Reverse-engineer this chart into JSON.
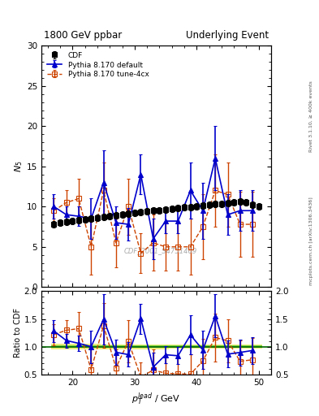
{
  "title_left": "1800 GeV ppbar",
  "title_right": "Underlying Event",
  "ylabel_main": "$N_5$",
  "ylabel_ratio": "Ratio to CDF",
  "xlabel": "$p_T^{lead}$ / GeV",
  "right_label_top": "Rivet 3.1.10, ≥ 400k events",
  "right_label_bot": "mcplots.cern.ch [arXiv:1306.3436]",
  "watermark": "CDF_2001_S4751469",
  "ylim_main": [
    0,
    30
  ],
  "ylim_ratio": [
    0.5,
    2.0
  ],
  "xlim": [
    15,
    52
  ],
  "xticks": [
    20,
    30,
    40,
    50
  ],
  "yticks_main": [
    0,
    5,
    10,
    15,
    20,
    25,
    30
  ],
  "yticks_ratio": [
    0.5,
    1.0,
    1.5,
    2.0
  ],
  "cdf_x": [
    17,
    18,
    19,
    20,
    21,
    22,
    23,
    24,
    25,
    26,
    27,
    28,
    29,
    30,
    31,
    32,
    33,
    34,
    35,
    36,
    37,
    38,
    39,
    40,
    41,
    42,
    43,
    44,
    45,
    46,
    47,
    48,
    49,
    50
  ],
  "cdf_y": [
    7.8,
    8.0,
    8.1,
    8.2,
    8.3,
    8.4,
    8.5,
    8.6,
    8.7,
    8.8,
    8.9,
    9.0,
    9.1,
    9.2,
    9.3,
    9.4,
    9.5,
    9.5,
    9.6,
    9.7,
    9.8,
    9.9,
    9.9,
    10.0,
    10.1,
    10.2,
    10.3,
    10.3,
    10.4,
    10.5,
    10.6,
    10.5,
    10.2,
    10.0
  ],
  "cdf_yerr": [
    0.4,
    0.4,
    0.4,
    0.4,
    0.4,
    0.4,
    0.4,
    0.4,
    0.4,
    0.4,
    0.4,
    0.4,
    0.4,
    0.4,
    0.4,
    0.4,
    0.4,
    0.4,
    0.4,
    0.4,
    0.4,
    0.4,
    0.4,
    0.4,
    0.4,
    0.4,
    0.4,
    0.4,
    0.4,
    0.4,
    0.4,
    0.4,
    0.4,
    0.4
  ],
  "py_def_x": [
    17,
    19,
    21,
    23,
    25,
    27,
    29,
    31,
    33,
    35,
    37,
    39,
    41,
    43,
    45,
    47,
    49
  ],
  "py_def_y": [
    10.0,
    9.0,
    8.8,
    8.5,
    13.0,
    8.0,
    7.8,
    14.0,
    6.0,
    8.2,
    8.2,
    12.0,
    9.5,
    16.0,
    9.0,
    9.5,
    9.5
  ],
  "py_def_yerr": [
    1.5,
    1.0,
    1.2,
    2.5,
    4.0,
    2.0,
    2.0,
    2.5,
    2.5,
    1.5,
    1.5,
    3.5,
    3.5,
    4.0,
    2.5,
    2.5,
    2.5
  ],
  "py_4cx_x": [
    17,
    19,
    21,
    23,
    25,
    27,
    29,
    31,
    33,
    35,
    37,
    39,
    41,
    43,
    45,
    47,
    49
  ],
  "py_4cx_y": [
    9.5,
    10.5,
    11.0,
    5.0,
    12.0,
    5.5,
    10.0,
    4.2,
    5.5,
    5.0,
    5.0,
    5.0,
    7.5,
    12.0,
    11.5,
    7.8,
    7.8
  ],
  "py_4cx_yerr": [
    1.5,
    1.5,
    2.5,
    3.5,
    3.5,
    3.0,
    3.5,
    2.5,
    3.5,
    3.0,
    3.0,
    3.5,
    4.0,
    4.5,
    4.0,
    4.0,
    4.0
  ],
  "cdf_color": "#000000",
  "py_def_color": "#0000cc",
  "py_4cx_color": "#cc4400",
  "band_green": "#00bb00",
  "band_yellow": "#dddd00",
  "band_green_alpha": 0.5,
  "band_yellow_alpha": 0.5
}
